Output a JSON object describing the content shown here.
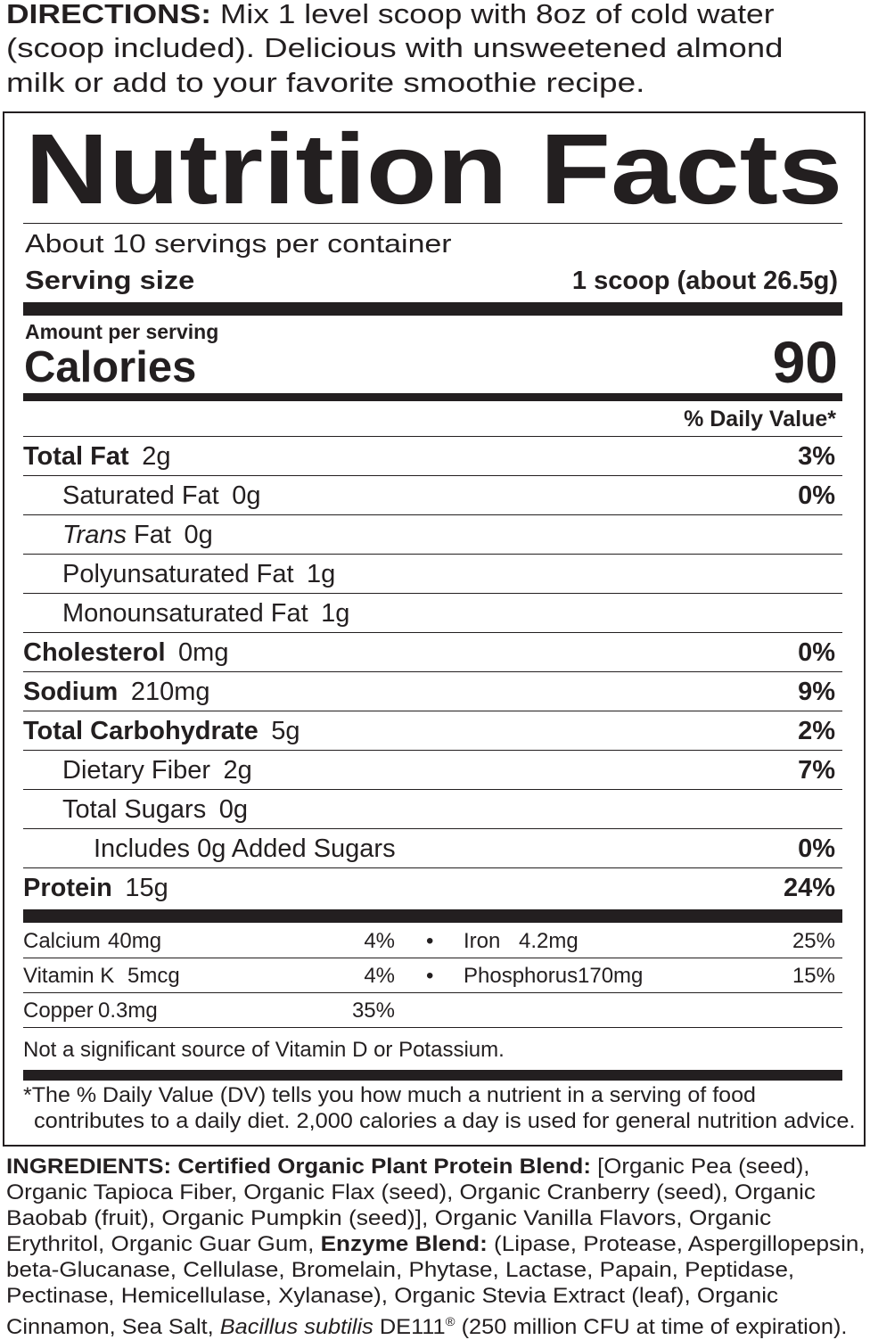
{
  "directions": {
    "label": "DIRECTIONS:",
    "lines": [
      " Mix 1 level scoop with 8oz of cold water",
      "(scoop included). Delicious with unsweetened almond",
      "milk or add to your favorite smoothie recipe."
    ]
  },
  "label": {
    "title": "Nutrition Facts",
    "servings": "About 10 servings per container",
    "serving_size_label": "Serving size",
    "serving_size_value": "1 scoop (about 26.5g)",
    "amount_per_serving": "Amount per serving",
    "calories_label": "Calories",
    "calories_value": "90",
    "dv_header": "% Daily Value*",
    "nutrients": [
      {
        "name": "Total Fat",
        "amount": "2g",
        "dv": "3%",
        "bold": true,
        "indent": 0
      },
      {
        "name": "Saturated Fat",
        "amount": "0g",
        "dv": "0%",
        "bold": false,
        "indent": 1
      },
      {
        "name": "Trans",
        "name_suffix": " Fat",
        "amount": "0g",
        "dv": "",
        "bold": false,
        "indent": 1,
        "italic": true
      },
      {
        "name": "Polyunsaturated Fat",
        "amount": "1g",
        "dv": "",
        "bold": false,
        "indent": 1
      },
      {
        "name": "Monounsaturated Fat",
        "amount": "1g",
        "dv": "",
        "bold": false,
        "indent": 1
      },
      {
        "name": "Cholesterol",
        "amount": "0mg",
        "dv": "0%",
        "bold": true,
        "indent": 0
      },
      {
        "name": "Sodium",
        "amount": "210mg",
        "dv": "9%",
        "bold": true,
        "indent": 0
      },
      {
        "name": "Total Carbohydrate",
        "amount": "5g",
        "dv": "2%",
        "bold": true,
        "indent": 0
      },
      {
        "name": "Dietary Fiber",
        "amount": "2g",
        "dv": "7%",
        "bold": false,
        "indent": 1
      },
      {
        "name": "Total Sugars",
        "amount": "0g",
        "dv": "",
        "bold": false,
        "indent": 1
      },
      {
        "name": "Includes 0g Added Sugars",
        "amount": "",
        "dv": "0%",
        "bold": false,
        "indent": 2
      },
      {
        "name": "Protein",
        "amount": "15g",
        "dv": "24%",
        "bold": true,
        "indent": 0
      }
    ],
    "vitamins": [
      {
        "left": {
          "name": "Calcium",
          "amount": "40mg",
          "dv": "4%"
        },
        "right": {
          "name": "Iron",
          "amount": "4.2mg",
          "dv": "25%"
        }
      },
      {
        "left": {
          "name": "Vitamin K",
          "amount": "5mcg",
          "dv": "4%"
        },
        "right": {
          "name": "Phosphorus",
          "amount": "170mg",
          "dv": "15%"
        }
      },
      {
        "left": {
          "name": "Copper",
          "amount": "0.3mg",
          "dv": "35%"
        }
      }
    ],
    "not_significant": "Not a significant source of Vitamin D or Potassium.",
    "footnote": [
      "*The % Daily Value (DV) tells you how much a nutrient in a serving of food",
      "contributes to a daily diet. 2,000 calories a day is used for general nutrition advice."
    ]
  },
  "ingredients": [
    [
      {
        "t": "INGREDIENTS: Certified Organic Plant Protein Blend:",
        "s": "b"
      },
      {
        "t": " [Organic Pea (seed),"
      }
    ],
    [
      {
        "t": "Organic Tapioca Fiber, Organic Flax (seed), Organic Cranberry (seed), Organic"
      }
    ],
    [
      {
        "t": "Baobab (fruit), Organic Pumpkin (seed)], Organic Vanilla Flavors, Organic"
      }
    ],
    [
      {
        "t": "Erythritol, Organic Guar Gum, "
      },
      {
        "t": "Enzyme Blend:",
        "s": "b"
      },
      {
        "t": " (Lipase, Protease, Aspergillopepsin,"
      }
    ],
    [
      {
        "t": "beta-Glucanase, Cellulase, Bromelain, Phytase, Lactase, Papain, Peptidase,"
      }
    ],
    [
      {
        "t": "Pectinase, Hemicellulase, Xylanase), Organic Stevia Extract (leaf), Organic"
      }
    ],
    [
      {
        "t": "Cinnamon, Sea Salt, "
      },
      {
        "t": "Bacillus subtilis",
        "s": "i"
      },
      {
        "t": " DE111"
      },
      {
        "t": "®",
        "s": "sup"
      },
      {
        "t": " (250 million CFU at time of expiration)."
      }
    ]
  ]
}
